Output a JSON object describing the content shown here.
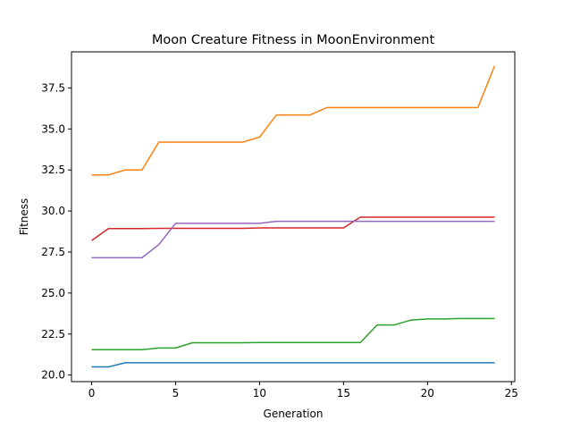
{
  "chart_data": {
    "type": "line",
    "title": "Moon Creature Fitness in MoonEnvironment",
    "xlabel": "Generation",
    "ylabel": "Fitness",
    "xlim": [
      -1.2,
      25.2
    ],
    "ylim": [
      19.6,
      39.7
    ],
    "xticks": [
      0,
      5,
      10,
      15,
      20,
      25
    ],
    "yticks": [
      20.0,
      22.5,
      25.0,
      27.5,
      30.0,
      32.5,
      35.0,
      37.5
    ],
    "ytick_labels": [
      "20.0",
      "22.5",
      "25.0",
      "27.5",
      "30.0",
      "32.5",
      "35.0",
      "37.5"
    ],
    "grid": false,
    "legend": "none",
    "x": [
      0,
      1,
      2,
      3,
      4,
      5,
      6,
      7,
      8,
      9,
      10,
      11,
      12,
      13,
      14,
      15,
      16,
      17,
      18,
      19,
      20,
      21,
      22,
      23,
      24
    ],
    "series": [
      {
        "color": "#1f77b4",
        "values": [
          20.5,
          20.5,
          20.75,
          20.75,
          20.75,
          20.75,
          20.75,
          20.75,
          20.75,
          20.75,
          20.75,
          20.75,
          20.75,
          20.75,
          20.75,
          20.75,
          20.75,
          20.75,
          20.75,
          20.75,
          20.75,
          20.75,
          20.75,
          20.75,
          20.75
        ]
      },
      {
        "color": "#ff7f0e",
        "values": [
          32.2,
          32.2,
          32.5,
          32.5,
          34.2,
          34.2,
          34.2,
          34.2,
          34.2,
          34.2,
          34.5,
          35.85,
          35.85,
          35.85,
          36.3,
          36.3,
          36.3,
          36.3,
          36.3,
          36.3,
          36.3,
          36.3,
          36.3,
          36.3,
          38.85
        ]
      },
      {
        "color": "#2ca02c",
        "values": [
          21.55,
          21.55,
          21.55,
          21.55,
          21.65,
          21.65,
          21.97,
          21.97,
          21.97,
          21.97,
          21.98,
          21.98,
          21.98,
          21.98,
          21.98,
          21.98,
          21.98,
          23.05,
          23.05,
          23.35,
          23.42,
          23.42,
          23.45,
          23.45,
          23.45
        ]
      },
      {
        "color": "#d62728",
        "values": [
          28.2,
          28.93,
          28.93,
          28.93,
          28.94,
          28.94,
          28.94,
          28.94,
          28.94,
          28.94,
          28.97,
          28.97,
          28.97,
          28.97,
          28.97,
          28.97,
          29.62,
          29.62,
          29.62,
          29.62,
          29.62,
          29.62,
          29.62,
          29.62,
          29.62
        ]
      },
      {
        "color": "#9467bd",
        "values": [
          27.15,
          27.15,
          27.15,
          27.15,
          27.95,
          29.25,
          29.25,
          29.25,
          29.25,
          29.25,
          29.25,
          29.37,
          29.37,
          29.37,
          29.37,
          29.37,
          29.37,
          29.37,
          29.37,
          29.37,
          29.37,
          29.37,
          29.37,
          29.37,
          29.37
        ]
      }
    ]
  }
}
